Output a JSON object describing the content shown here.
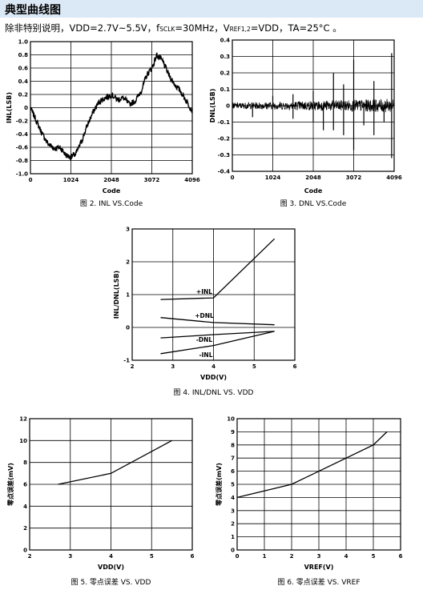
{
  "page": {
    "section_title": "典型曲线图",
    "note_parts": [
      "除非特别说明，VDD=2.7V~5.5V，f",
      "SCLK",
      "=30MHz，V",
      "REF1,2",
      "=VDD，TA=25°C 。"
    ]
  },
  "chart_data": [
    {
      "id": "fig2",
      "type": "line",
      "caption": "图 2.  INL VS.Code",
      "xlabel": "Code",
      "ylabel": "INL(LSB)",
      "xlim": [
        0,
        4096
      ],
      "ylim": [
        -1.0,
        1.0
      ],
      "xticks": [
        "0",
        "1024",
        "2048",
        "3072",
        "4096"
      ],
      "yticks": [
        "-1.0",
        "-0.8",
        "-0.6",
        "-0.4",
        "-0.2",
        "0",
        "0.2",
        "0.4",
        "0.6",
        "0.8",
        "1.0"
      ],
      "grid": true,
      "series": [
        {
          "x": [
            0,
            150,
            300,
            450,
            600,
            750,
            900,
            1024,
            1150,
            1300,
            1450,
            1600,
            1750,
            1900,
            2048,
            2200,
            2350,
            2500,
            2650,
            2800,
            2950,
            3072,
            3200,
            3350,
            3500,
            3650,
            3800,
            3900,
            4000,
            4096
          ],
          "y": [
            0.0,
            -0.2,
            -0.4,
            -0.55,
            -0.62,
            -0.6,
            -0.72,
            -0.75,
            -0.7,
            -0.5,
            -0.25,
            -0.05,
            0.1,
            0.15,
            0.2,
            0.12,
            0.15,
            0.05,
            0.1,
            0.25,
            0.5,
            0.6,
            0.8,
            0.7,
            0.5,
            0.35,
            0.25,
            0.15,
            0.05,
            -0.05
          ]
        }
      ]
    },
    {
      "id": "fig3",
      "type": "line",
      "caption": "图 3.  DNL VS.Code",
      "xlabel": "Code",
      "ylabel": "DNL(LSB)",
      "xlim": [
        0,
        4096
      ],
      "ylim": [
        -0.4,
        0.4
      ],
      "xticks": [
        "0",
        "1024",
        "2048",
        "3072",
        "4096"
      ],
      "yticks": [
        "-0.4",
        "-0.3",
        "-0.2",
        "-0.1",
        "0",
        "0.1",
        "0.2",
        "0.3",
        "0.4"
      ],
      "grid": true,
      "noise_band": 0.035,
      "spikes": [
        {
          "x": 512,
          "y": -0.07
        },
        {
          "x": 1024,
          "y": 0.06
        },
        {
          "x": 1536,
          "y": 0.07
        },
        {
          "x": 1536,
          "y": -0.08
        },
        {
          "x": 2048,
          "y": -0.1
        },
        {
          "x": 2048,
          "y": 0.09
        },
        {
          "x": 2304,
          "y": -0.15
        },
        {
          "x": 2560,
          "y": 0.2
        },
        {
          "x": 2560,
          "y": -0.15
        },
        {
          "x": 2816,
          "y": 0.13
        },
        {
          "x": 2816,
          "y": -0.18
        },
        {
          "x": 3072,
          "y": 0.28
        },
        {
          "x": 3072,
          "y": -0.27
        },
        {
          "x": 3328,
          "y": -0.12
        },
        {
          "x": 3584,
          "y": 0.15
        },
        {
          "x": 3584,
          "y": -0.18
        },
        {
          "x": 3840,
          "y": -0.1
        },
        {
          "x": 4032,
          "y": 0.32
        },
        {
          "x": 4032,
          "y": -0.32
        }
      ]
    },
    {
      "id": "fig4",
      "type": "line",
      "caption": "图 4.  INL/DNL VS. VDD",
      "xlabel": "VDD(V)",
      "ylabel": "INL/DNL(LSB)",
      "xlim": [
        2,
        6
      ],
      "ylim": [
        -1,
        3
      ],
      "xticks": [
        "2",
        "3",
        "4",
        "5",
        "6"
      ],
      "yticks": [
        "-1",
        "0",
        "1",
        "2",
        "3"
      ],
      "grid": true,
      "series": [
        {
          "name": "+INL",
          "x": [
            2.7,
            4.0,
            5.5
          ],
          "y": [
            0.85,
            0.9,
            2.7
          ]
        },
        {
          "name": "+DNL",
          "x": [
            2.7,
            4.0,
            5.5
          ],
          "y": [
            0.3,
            0.15,
            0.08
          ]
        },
        {
          "name": "-DNL",
          "x": [
            2.7,
            4.0,
            5.5
          ],
          "y": [
            -0.32,
            -0.22,
            -0.12
          ]
        },
        {
          "name": "-INL",
          "x": [
            2.7,
            4.0,
            5.5
          ],
          "y": [
            -0.8,
            -0.55,
            -0.12
          ]
        }
      ]
    },
    {
      "id": "fig5",
      "type": "line",
      "caption": "图 5.  零点误差 VS. VDD",
      "xlabel": "VDD(V)",
      "ylabel": "零点误差(mV)",
      "xlim": [
        2,
        6
      ],
      "ylim": [
        0,
        12
      ],
      "xticks": [
        "2",
        "3",
        "4",
        "5",
        "6"
      ],
      "yticks": [
        "0",
        "2",
        "4",
        "6",
        "8",
        "10",
        "12"
      ],
      "grid": true,
      "series": [
        {
          "x": [
            2.7,
            4.0,
            5.5
          ],
          "y": [
            6.0,
            7.0,
            10.0
          ]
        }
      ]
    },
    {
      "id": "fig6",
      "type": "line",
      "caption": "图 6.  零点误差 VS. VREF",
      "xlabel": "VREF(V)",
      "ylabel": "零点误差(mV)",
      "xlim": [
        0,
        6
      ],
      "ylim": [
        0,
        10
      ],
      "xticks": [
        "0",
        "1",
        "2",
        "3",
        "4",
        "5",
        "6"
      ],
      "yticks": [
        "0",
        "1",
        "2",
        "3",
        "4",
        "5",
        "6",
        "7",
        "8",
        "9",
        "10"
      ],
      "grid": true,
      "series": [
        {
          "x": [
            0,
            2,
            5,
            5.5
          ],
          "y": [
            4,
            5,
            8,
            9
          ]
        }
      ]
    }
  ]
}
